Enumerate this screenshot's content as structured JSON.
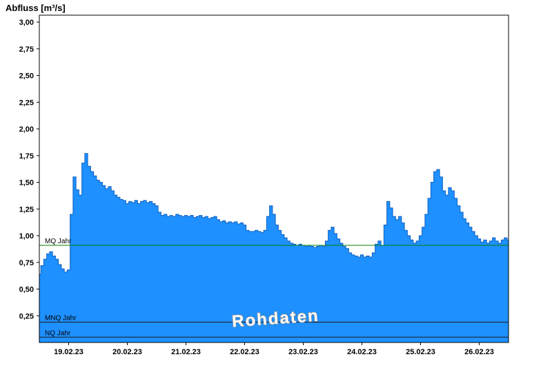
{
  "chart_data": {
    "type": "area",
    "title": "Abfluss [m³/s]",
    "unit": "m³/s",
    "watermark": "Rohdaten",
    "xlim": [
      0,
      8
    ],
    "ylim": [
      0,
      3.065
    ],
    "x_start": 0,
    "x_step_days": 0.05,
    "x_ticks": [
      {
        "pos": 0.5,
        "label": "19.02.23"
      },
      {
        "pos": 1.5,
        "label": "20.02.23"
      },
      {
        "pos": 2.5,
        "label": "21.02.23"
      },
      {
        "pos": 3.5,
        "label": "22.02.23"
      },
      {
        "pos": 4.5,
        "label": "23.02.23"
      },
      {
        "pos": 5.5,
        "label": "24.02.23"
      },
      {
        "pos": 6.5,
        "label": "25.02.23"
      },
      {
        "pos": 7.5,
        "label": "26.02.23"
      }
    ],
    "y_ticks": [
      {
        "value": 0.25,
        "label": "0,25"
      },
      {
        "value": 0.5,
        "label": "0,50"
      },
      {
        "value": 0.75,
        "label": "0,75"
      },
      {
        "value": 1.0,
        "label": "1,00"
      },
      {
        "value": 1.25,
        "label": "1,25"
      },
      {
        "value": 1.5,
        "label": "1,50"
      },
      {
        "value": 1.75,
        "label": "1,75"
      },
      {
        "value": 2.0,
        "label": "2,00"
      },
      {
        "value": 2.25,
        "label": "2,25"
      },
      {
        "value": 2.5,
        "label": "2,50"
      },
      {
        "value": 2.75,
        "label": "2,75"
      },
      {
        "value": 3.0,
        "label": "3,00"
      }
    ],
    "reference_lines": [
      {
        "label": "MQ Jahr",
        "value": 0.91,
        "color": "#007F00"
      },
      {
        "label": "MNQ Jahr",
        "value": 0.19,
        "color": "#1a1a1a"
      },
      {
        "label": "NQ Jahr",
        "value": 0.05,
        "color": "#1a1a1a"
      }
    ],
    "colors": {
      "fill": "#1E90FF",
      "stroke": "#1060C0",
      "axis": "#000000",
      "watermark_fill": "#FFFFFF",
      "watermark_outline": "#909090"
    },
    "values": [
      0.64,
      0.72,
      0.78,
      0.83,
      0.85,
      0.81,
      0.78,
      0.73,
      0.69,
      0.66,
      0.68,
      1.2,
      1.55,
      1.43,
      1.38,
      1.68,
      1.77,
      1.65,
      1.6,
      1.56,
      1.52,
      1.5,
      1.47,
      1.44,
      1.46,
      1.42,
      1.38,
      1.36,
      1.34,
      1.33,
      1.3,
      1.32,
      1.31,
      1.33,
      1.3,
      1.32,
      1.33,
      1.31,
      1.32,
      1.3,
      1.28,
      1.22,
      1.19,
      1.2,
      1.18,
      1.19,
      1.18,
      1.2,
      1.19,
      1.18,
      1.19,
      1.18,
      1.19,
      1.17,
      1.18,
      1.19,
      1.17,
      1.18,
      1.16,
      1.17,
      1.18,
      1.15,
      1.13,
      1.14,
      1.12,
      1.13,
      1.12,
      1.13,
      1.11,
      1.12,
      1.1,
      1.05,
      1.04,
      1.04,
      1.05,
      1.04,
      1.03,
      1.05,
      1.18,
      1.28,
      1.2,
      1.1,
      1.05,
      1.01,
      0.98,
      0.95,
      0.93,
      0.92,
      0.91,
      0.92,
      0.91,
      0.9,
      0.91,
      0.9,
      0.89,
      0.9,
      0.91,
      0.9,
      0.95,
      1.05,
      1.08,
      1.02,
      0.97,
      0.93,
      0.9,
      0.88,
      0.84,
      0.82,
      0.81,
      0.8,
      0.82,
      0.8,
      0.81,
      0.8,
      0.84,
      0.92,
      0.95,
      0.91,
      1.1,
      1.32,
      1.26,
      1.18,
      1.15,
      1.18,
      1.12,
      1.05,
      1.0,
      0.96,
      0.93,
      0.95,
      1.0,
      1.08,
      1.2,
      1.35,
      1.5,
      1.6,
      1.62,
      1.55,
      1.42,
      1.38,
      1.45,
      1.42,
      1.35,
      1.28,
      1.22,
      1.16,
      1.12,
      1.08,
      1.04,
      1.0,
      0.97,
      0.94,
      0.96,
      0.93,
      0.95,
      0.98,
      0.95,
      0.93,
      0.96,
      0.98,
      0.96
    ]
  }
}
